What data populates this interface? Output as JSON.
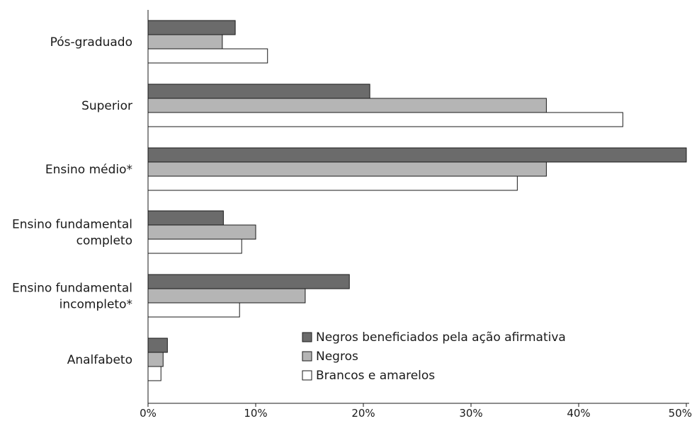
{
  "chart_data": {
    "type": "bar",
    "orientation": "horizontal",
    "categories": [
      [
        "Pós-graduado"
      ],
      [
        "Superior"
      ],
      [
        "Ensino médio*"
      ],
      [
        "Ensino fundamental",
        "completo"
      ],
      [
        "Ensino fundamental",
        "incompleto*"
      ],
      [
        "Analfabeto"
      ]
    ],
    "series": [
      {
        "name": "Negros beneficiados pela ação afirmativa",
        "color": "#6b6b6b",
        "values": [
          8.1,
          20.6,
          50.0,
          7.0,
          18.7,
          1.8
        ]
      },
      {
        "name": "Negros",
        "color": "#b5b5b5",
        "values": [
          6.9,
          37.0,
          37.0,
          10.0,
          14.6,
          1.4
        ]
      },
      {
        "name": "Brancos e amarelos",
        "color": "#ffffff",
        "values": [
          11.1,
          44.1,
          34.3,
          8.7,
          8.5,
          1.2
        ]
      }
    ],
    "x_ticks": [
      0,
      10,
      20,
      30,
      40,
      50
    ],
    "x_tick_labels": [
      "0%",
      "10%",
      "20%",
      "30%",
      "40%",
      "50%"
    ],
    "xlim": [
      0,
      50
    ],
    "title": "",
    "xlabel": "",
    "ylabel": "",
    "grid": false,
    "legend_position": "bottom-right"
  }
}
